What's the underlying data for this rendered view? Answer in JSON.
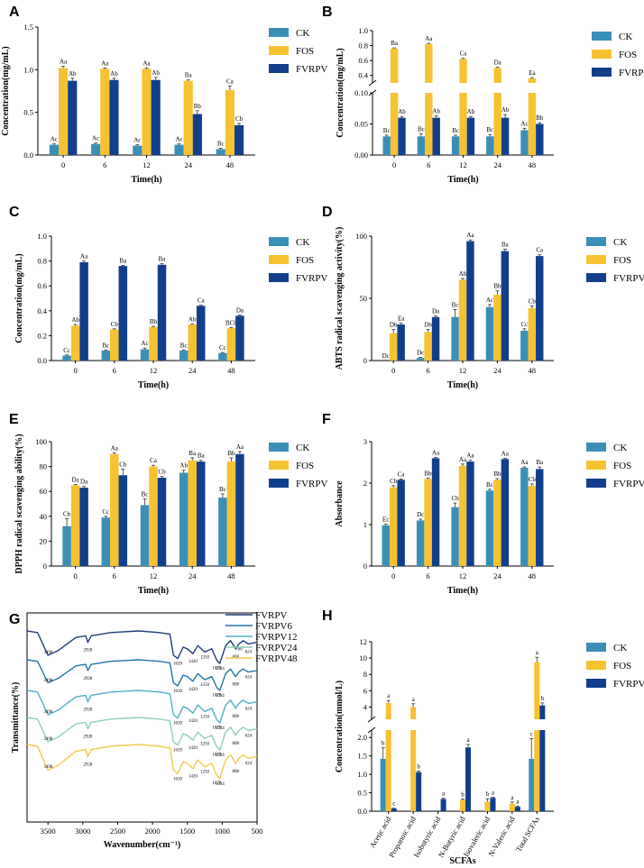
{
  "colors": {
    "CK": "#3a8fb7",
    "FOS": "#f6c232",
    "FVRPV": "#123f8c",
    "ftir": [
      "#1f3d7a",
      "#2475a8",
      "#4fb0c6",
      "#8fd1b8",
      "#f2c94c"
    ]
  },
  "legend_labels": [
    "CK",
    "FOS",
    "FVRPV"
  ],
  "chart_data": [
    {
      "panel": "A",
      "type": "bar",
      "xlabel": "Time(h)",
      "ylabel": "Concentration(mg/mL)",
      "categories": [
        "0",
        "6",
        "12",
        "24",
        "48"
      ],
      "ylim": [
        0,
        1.5
      ],
      "yticks": [
        "0.0",
        "0.5",
        "1.0",
        "1.5"
      ],
      "series": [
        {
          "name": "CK",
          "values": [
            0.12,
            0.13,
            0.11,
            0.12,
            0.07
          ],
          "errors": [
            0.01,
            0.01,
            0.01,
            0.01,
            0.01
          ],
          "labels": [
            "Ac",
            "Ac",
            "Ac",
            "Ac",
            "Bc"
          ]
        },
        {
          "name": "FOS",
          "values": [
            1.02,
            1.01,
            1.01,
            0.87,
            0.76
          ],
          "errors": [
            0.02,
            0.01,
            0.01,
            0.01,
            0.05
          ],
          "labels": [
            "Aa",
            "Aa",
            "Aa",
            "Ba",
            "Ca"
          ]
        },
        {
          "name": "FVRPV",
          "values": [
            0.87,
            0.88,
            0.88,
            0.48,
            0.35
          ],
          "errors": [
            0.03,
            0.02,
            0.03,
            0.04,
            0.02
          ],
          "labels": [
            "Ab",
            "Ab",
            "Ab",
            "Bb",
            "Cb"
          ]
        }
      ]
    },
    {
      "panel": "B",
      "type": "bar",
      "broken_axis": true,
      "xlabel": "Time(h)",
      "ylabel": "Concentration(mg/mL)",
      "categories": [
        "0",
        "6",
        "12",
        "24",
        "48"
      ],
      "ylim_lower": [
        0,
        0.1
      ],
      "ylim_upper": [
        0.3,
        1.0
      ],
      "yticks": [
        "0.00",
        "0.05",
        "0.10",
        "0.4",
        "0.6",
        "0.8",
        "1.0"
      ],
      "series": [
        {
          "name": "CK",
          "values": [
            0.03,
            0.03,
            0.03,
            0.03,
            0.04
          ],
          "errors": [
            0.002,
            0.004,
            0.002,
            0.003,
            0.003
          ],
          "labels": [
            "Bc",
            "Bc",
            "Bc",
            "Bc",
            "Ac"
          ]
        },
        {
          "name": "FOS",
          "values": [
            0.76,
            0.82,
            0.62,
            0.5,
            0.36
          ],
          "errors": [
            0.01,
            0.01,
            0.01,
            0.01,
            0.01
          ],
          "labels": [
            "Ba",
            "Aa",
            "Ca",
            "Da",
            "Ea"
          ]
        },
        {
          "name": "FVRPV",
          "values": [
            0.06,
            0.06,
            0.06,
            0.06,
            0.05
          ],
          "errors": [
            0.002,
            0.003,
            0.002,
            0.005,
            0.002
          ],
          "labels": [
            "Ab",
            "Ab",
            "Ab",
            "Ab",
            "Bb"
          ]
        }
      ]
    },
    {
      "panel": "C",
      "type": "bar",
      "xlabel": "Time(h)",
      "ylabel": "Concentration(mg/mL)",
      "categories": [
        "0",
        "6",
        "12",
        "24",
        "48"
      ],
      "ylim": [
        0,
        1.0
      ],
      "yticks": [
        "0.0",
        "0.2",
        "0.4",
        "0.6",
        "0.8",
        "1.0"
      ],
      "series": [
        {
          "name": "CK",
          "values": [
            0.04,
            0.08,
            0.09,
            0.08,
            0.06
          ],
          "errors": [
            0.005,
            0.005,
            0.01,
            0.005,
            0.005
          ],
          "labels": [
            "Cc",
            "Bc",
            "Ac",
            "Bc",
            "Cc"
          ]
        },
        {
          "name": "FOS",
          "values": [
            0.28,
            0.25,
            0.27,
            0.29,
            0.26
          ],
          "errors": [
            0.01,
            0.005,
            0.005,
            0.005,
            0.005
          ],
          "labels": [
            "Ab",
            "Cb",
            "Bb",
            "Ab",
            "BCb"
          ]
        },
        {
          "name": "FVRPV",
          "values": [
            0.79,
            0.76,
            0.77,
            0.44,
            0.36
          ],
          "errors": [
            0.01,
            0.005,
            0.01,
            0.005,
            0.005
          ],
          "labels": [
            "Aa",
            "Ba",
            "Ba",
            "Ca",
            "Da"
          ]
        }
      ]
    },
    {
      "panel": "D",
      "type": "bar",
      "xlabel": "Time(h)",
      "ylabel": "ABTS radical scavenging activity(%)",
      "categories": [
        "0",
        "6",
        "12",
        "24",
        "48"
      ],
      "ylim": [
        0,
        100
      ],
      "yticks": [
        "0",
        "50",
        "100"
      ],
      "series": [
        {
          "name": "CK",
          "values": [
            0,
            2,
            35,
            43,
            24
          ],
          "errors": [
            0,
            0.5,
            6,
            2,
            1.5
          ],
          "labels": [
            "Dc",
            "Dc",
            "Bc",
            "Ac",
            "Cc"
          ]
        },
        {
          "name": "FOS",
          "values": [
            22,
            23,
            65,
            53,
            42
          ],
          "errors": [
            3,
            2,
            1,
            3,
            2
          ],
          "labels": [
            "Db",
            "Db",
            "Ab",
            "Bb",
            "Cb"
          ]
        },
        {
          "name": "FVRPV",
          "values": [
            29,
            35,
            96,
            88,
            84
          ],
          "errors": [
            1,
            1,
            1,
            1.5,
            1
          ],
          "labels": [
            "Ea",
            "Da",
            "Aa",
            "Ba",
            "Ca"
          ]
        }
      ]
    },
    {
      "panel": "E",
      "type": "bar",
      "xlabel": "Time(h)",
      "ylabel": "DPPH radical scavenging ability(%)",
      "categories": [
        "0",
        "6",
        "12",
        "24",
        "48"
      ],
      "ylim": [
        0,
        100
      ],
      "yticks": [
        "0",
        "20",
        "40",
        "60",
        "80",
        "100"
      ],
      "series": [
        {
          "name": "CK",
          "values": [
            32,
            39,
            49,
            75,
            55
          ],
          "errors": [
            6,
            1,
            5,
            2,
            3
          ],
          "labels": [
            "Cb",
            "Cc",
            "Bc",
            "Ab",
            "Bc"
          ]
        },
        {
          "name": "FOS",
          "values": [
            65,
            90,
            80,
            85,
            84
          ],
          "errors": [
            0.5,
            1,
            1,
            2,
            3
          ],
          "labels": [
            "Da",
            "Aa",
            "Ca",
            "Ba",
            "Bb"
          ]
        },
        {
          "name": "FVRPV",
          "values": [
            63,
            73,
            71,
            84,
            90
          ],
          "errors": [
            1,
            5,
            1,
            1,
            2
          ],
          "labels": [
            "Da",
            "Cb",
            "Cb",
            "Ba",
            "Aa"
          ]
        }
      ]
    },
    {
      "panel": "F",
      "type": "bar",
      "xlabel": "Time(h)",
      "ylabel": "Absorbance",
      "categories": [
        "0",
        "6",
        "12",
        "24",
        "48"
      ],
      "ylim": [
        0,
        3
      ],
      "yticks": [
        "0",
        "1",
        "2",
        "3"
      ],
      "series": [
        {
          "name": "CK",
          "values": [
            0.98,
            1.1,
            1.42,
            1.82,
            2.37
          ],
          "errors": [
            0.03,
            0.03,
            0.1,
            0.03,
            0.02
          ],
          "labels": [
            "Ec",
            "Dc",
            "Cb",
            "Bc",
            "Aa"
          ]
        },
        {
          "name": "FOS",
          "values": [
            1.9,
            2.1,
            2.42,
            2.08,
            1.93
          ],
          "errors": [
            0.04,
            0.02,
            0.04,
            0.03,
            0.05
          ],
          "labels": [
            "Cb",
            "Bb",
            "Aa",
            "Bb",
            "Cb"
          ]
        },
        {
          "name": "FVRPV",
          "values": [
            2.08,
            2.6,
            2.52,
            2.58,
            2.34
          ],
          "errors": [
            0.02,
            0.02,
            0.03,
            0.02,
            0.05
          ],
          "labels": [
            "Ca",
            "Aa",
            "Aa",
            "Aa",
            "Ba"
          ]
        }
      ]
    },
    {
      "panel": "G",
      "type": "line",
      "xlabel": "Wavenumber(cm⁻¹)",
      "ylabel": "Transmittance(%)",
      "xlim": [
        3800,
        500
      ],
      "xticks": [
        "3500",
        "3000",
        "2500",
        "2000",
        "1500",
        "1000",
        "500"
      ],
      "series": [
        {
          "name": "FVRPV",
          "peaks": [
            "3498",
            "2928",
            "1639",
            "1420",
            "1250",
            "1079",
            "1034",
            "808",
            "760",
            "624"
          ]
        },
        {
          "name": "FVRPV6",
          "peaks": [
            "3498",
            "2928",
            "1639",
            "1420",
            "1250",
            "1079",
            "1034",
            "808",
            "624"
          ]
        },
        {
          "name": "FVRPV12",
          "peaks": [
            "3498",
            "2928",
            "1639",
            "1420",
            "1250",
            "1079",
            "1034",
            "808",
            "624"
          ]
        },
        {
          "name": "FVRPV24",
          "peaks": [
            "3498",
            "2928",
            "1639",
            "1420",
            "1250",
            "1079",
            "1034",
            "808",
            "624"
          ]
        },
        {
          "name": "FVRPV48",
          "peaks": [
            "3498",
            "2928",
            "1639",
            "1420",
            "1250",
            "1079",
            "1034",
            "808",
            "624"
          ]
        }
      ]
    },
    {
      "panel": "H",
      "type": "bar",
      "broken_axis": true,
      "xlabel": "SCFAs",
      "ylabel": "Concentration(mmol/L)",
      "categories": [
        "Acetic acid",
        "Propanoic acid",
        "Isobutyric acid",
        "N-Butyric acid",
        "Isovaleric acid",
        "N-Valeric acid",
        "Total SCFAs"
      ],
      "ylim_lower": [
        0,
        2.2
      ],
      "ylim_upper": [
        2.5,
        12
      ],
      "yticks": [
        "0.0",
        "0.5",
        "1.0",
        "1.5",
        "2.0",
        "4",
        "6",
        "8",
        "10",
        "12"
      ],
      "series": [
        {
          "name": "CK",
          "values": [
            1.42,
            0,
            0,
            0,
            0,
            0,
            1.42
          ],
          "errors": [
            0.3,
            0,
            0,
            0,
            0,
            0,
            0.55
          ],
          "labels": [
            "b",
            "",
            "",
            "",
            "",
            "",
            "c"
          ]
        },
        {
          "name": "FOS",
          "values": [
            4.5,
            4.0,
            0,
            0.31,
            0.26,
            0.2,
            9.5
          ],
          "errors": [
            0.3,
            0.4,
            0,
            0.02,
            0.08,
            0.05,
            0.6
          ],
          "labels": [
            "a",
            "a",
            "",
            "b",
            "b",
            "a",
            "a"
          ]
        },
        {
          "name": "FVRPV",
          "values": [
            0.07,
            1.06,
            0.33,
            1.73,
            0.36,
            0.12,
            4.2
          ],
          "errors": [
            0.01,
            0.03,
            0.02,
            0.08,
            0.02,
            0.02,
            0.3
          ],
          "labels": [
            "c",
            "b",
            "a",
            "a",
            "a",
            "a",
            "b"
          ]
        }
      ]
    }
  ],
  "panel_letters": [
    "A",
    "B",
    "C",
    "D",
    "E",
    "F",
    "G",
    "H"
  ]
}
